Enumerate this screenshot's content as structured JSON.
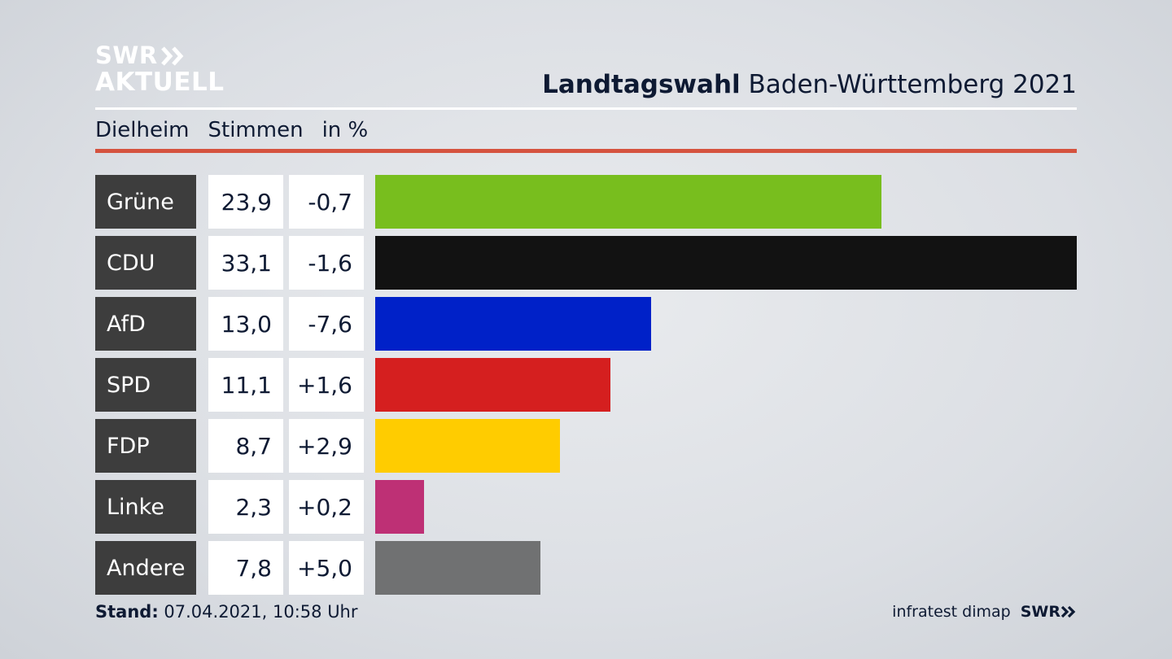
{
  "logo": {
    "line1": "SWR",
    "line2": "AKTUELL",
    "arrow_icon": "double-chevron-right-icon"
  },
  "header": {
    "title_bold": "Landtagswahl",
    "title_rest": "Baden-Württemberg 2021"
  },
  "subheader": {
    "place": "Dielheim",
    "col_votes": "Stimmen",
    "col_unit": "in %"
  },
  "colors": {
    "accent_rule": "#d5533f",
    "party_label_bg": "#3d3d3d"
  },
  "chart_data": {
    "type": "bar",
    "orientation": "horizontal",
    "categories": [
      "Grüne",
      "CDU",
      "AfD",
      "SPD",
      "FDP",
      "Linke",
      "Andere"
    ],
    "values": [
      23.9,
      33.1,
      13.0,
      11.1,
      8.7,
      2.3,
      7.8
    ],
    "value_labels": [
      "23,9",
      "33,1",
      "13,0",
      "11,1",
      "8,7",
      "2,3",
      "7,8"
    ],
    "changes": [
      "-0,7",
      "-1,6",
      "-7,6",
      "+1,6",
      "+2,9",
      "+0,2",
      "+5,0"
    ],
    "colors": [
      "#78be1e",
      "#121212",
      "#0021c8",
      "#d51f1f",
      "#ffcc00",
      "#be3075",
      "#707172"
    ],
    "xlim": [
      0,
      33.1
    ]
  },
  "footer": {
    "stand_label": "Stand:",
    "stand_value": "07.04.2021, 10:58 Uhr",
    "source": "infratest dimap",
    "source_logo": "SWR"
  }
}
